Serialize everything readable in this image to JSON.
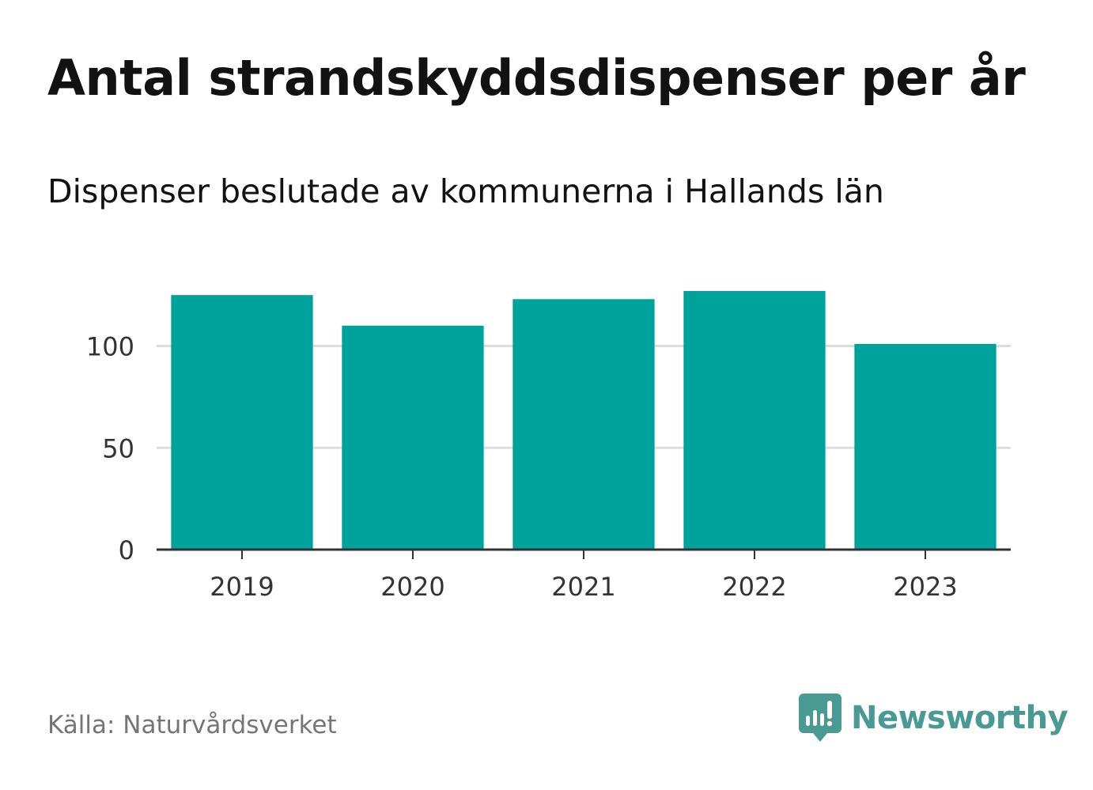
{
  "title": "Antal strandskyddsdispenser per år",
  "subtitle": "Dispenser beslutade av kommunerna i Hallands län",
  "source": "Källa: Naturvårdsverket",
  "logo": {
    "name": "Newsworthy",
    "icon": "newsworthy-logo-icon"
  },
  "colors": {
    "bar": "#00a39b",
    "grid": "#dddddd",
    "axis": "#333333",
    "logo": "#4a9a94"
  },
  "chart_data": {
    "type": "bar",
    "title": "Antal strandskyddsdispenser per år",
    "subtitle": "Dispenser beslutade av kommunerna i Hallands län",
    "categories": [
      "2019",
      "2020",
      "2021",
      "2022",
      "2023"
    ],
    "values": [
      125,
      110,
      123,
      127,
      101
    ],
    "xlabel": "",
    "ylabel": "",
    "ylim": [
      0,
      127
    ],
    "yticks": [
      0,
      50,
      100
    ],
    "grid": true,
    "legend": "none"
  }
}
